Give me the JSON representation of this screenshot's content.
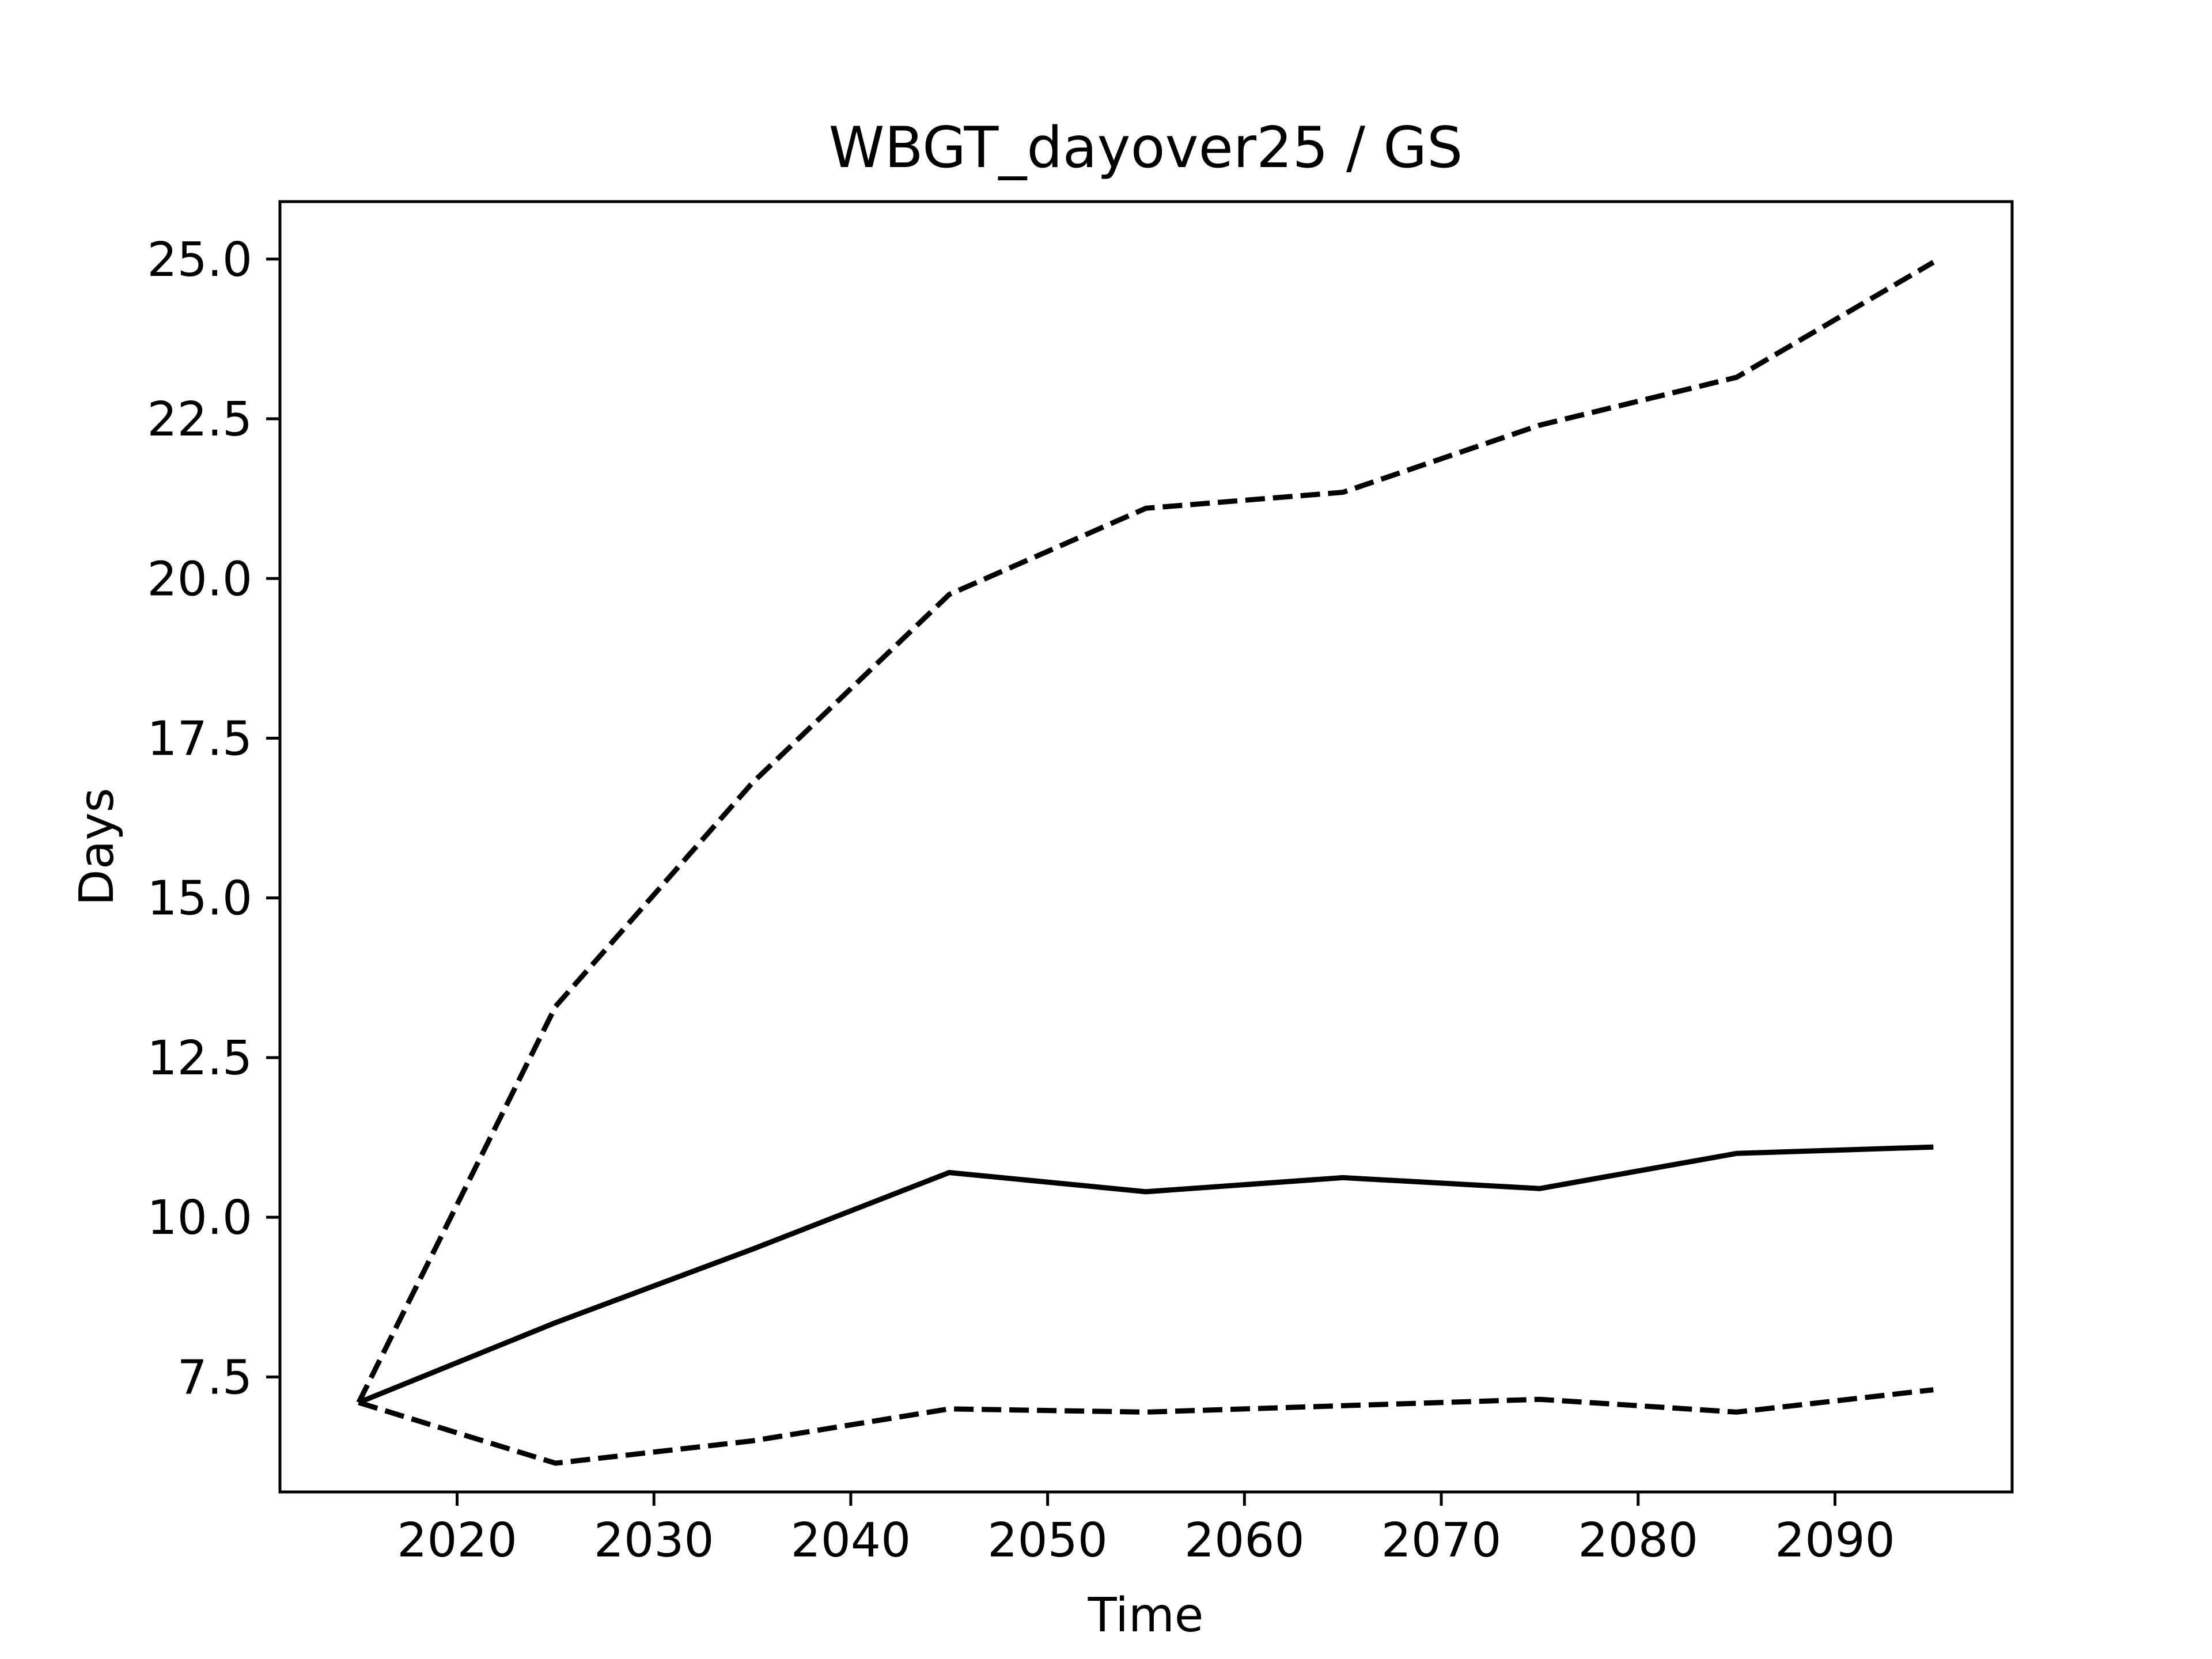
{
  "chart_data": {
    "type": "line",
    "title": "WBGT_dayover25 / GS",
    "xlabel": "Time",
    "ylabel": "Days",
    "xlim": [
      2011,
      2099
    ],
    "ylim": [
      5.7,
      25.9
    ],
    "xticks": [
      2020,
      2030,
      2040,
      2050,
      2060,
      2070,
      2080,
      2090
    ],
    "yticks": [
      7.5,
      10.0,
      12.5,
      15.0,
      17.5,
      20.0,
      22.5,
      25.0
    ],
    "ytick_labels": [
      "7.5",
      "10.0",
      "12.5",
      "15.0",
      "17.5",
      "20.0",
      "22.5",
      "25.0"
    ],
    "grid": false,
    "legend": "none",
    "series": [
      {
        "style": "dashed",
        "color": "#000000",
        "x": [
          2015,
          2025,
          2035,
          2045,
          2055,
          2065,
          2075,
          2085,
          2095
        ],
        "y": [
          7.1,
          13.3,
          16.8,
          19.75,
          21.1,
          21.35,
          22.4,
          23.15,
          24.95
        ]
      },
      {
        "style": "solid",
        "color": "#000000",
        "x": [
          2015,
          2025,
          2035,
          2045,
          2055,
          2065,
          2075,
          2085,
          2095
        ],
        "y": [
          7.1,
          8.35,
          9.5,
          10.7,
          10.4,
          10.62,
          10.45,
          11.0,
          11.1
        ]
      },
      {
        "style": "dashed",
        "color": "#000000",
        "x": [
          2015,
          2025,
          2035,
          2045,
          2055,
          2065,
          2075,
          2085,
          2095
        ],
        "y": [
          7.1,
          6.15,
          6.5,
          7.0,
          6.95,
          7.05,
          7.15,
          6.95,
          7.3
        ]
      }
    ]
  }
}
